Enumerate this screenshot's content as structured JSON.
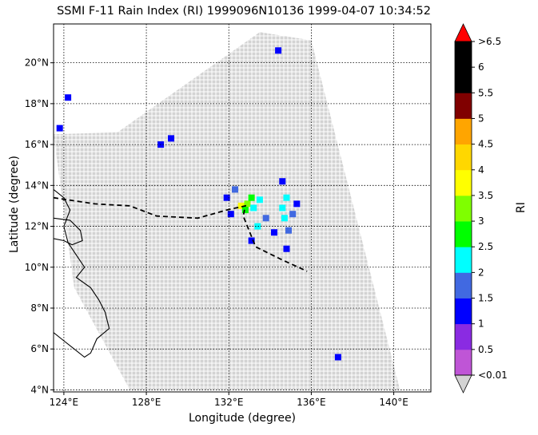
{
  "chart_data": {
    "type": "heatmap",
    "title": "SSMI F-11 Rain Index (RI) 1999096N10136 1999-04-07 10:34:52",
    "xlabel": "Longitude (degree)",
    "ylabel": "Latitude (degree)",
    "xlim": [
      123.5,
      141.8
    ],
    "ylim": [
      3.9,
      21.9
    ],
    "xticks": [
      {
        "value": 124,
        "label": "124°E"
      },
      {
        "value": 128,
        "label": "128°E"
      },
      {
        "value": 132,
        "label": "132°E"
      },
      {
        "value": 136,
        "label": "136°E"
      },
      {
        "value": 140,
        "label": "140°E"
      }
    ],
    "yticks": [
      {
        "value": 4,
        "label": "4°N"
      },
      {
        "value": 6,
        "label": "6°N"
      },
      {
        "value": 8,
        "label": "8°N"
      },
      {
        "value": 10,
        "label": "10°N"
      },
      {
        "value": 12,
        "label": "12°N"
      },
      {
        "value": 14,
        "label": "14°N"
      },
      {
        "value": 16,
        "label": "16°N"
      },
      {
        "value": 18,
        "label": "18°N"
      },
      {
        "value": 20,
        "label": "20°N"
      }
    ],
    "grid": true,
    "colorbar": {
      "label": "RI",
      "levels": [
        0.01,
        0.5,
        1,
        1.5,
        2,
        2.5,
        3,
        3.5,
        4,
        4.5,
        5,
        5.5,
        6,
        6.5
      ],
      "tick_labels": [
        "<0.01",
        "0.5",
        "1",
        "1.5",
        "2",
        "2.5",
        "3",
        "3.5",
        "4",
        "4.5",
        "5",
        "5.5",
        "6",
        ">6.5"
      ],
      "colors": [
        "#bf55d6",
        "#8a2be2",
        "#0000ff",
        "#4169e1",
        "#00ffff",
        "#00ff00",
        "#7fff00",
        "#ffff00",
        "#ffd700",
        "#ffa500",
        "#800000",
        "#000000",
        "#000000"
      ],
      "under_color": "#d3d3d3",
      "over_color": "#ff0000"
    },
    "swath": {
      "no_rain_color": "#d3d3d3",
      "corners_lonlat": [
        [
          126.6,
          16.6
        ],
        [
          133.5,
          21.5
        ],
        [
          136.0,
          21.1
        ],
        [
          140.3,
          4.0
        ],
        [
          127.2,
          4.0
        ],
        [
          124.5,
          9.0
        ],
        [
          123.5,
          16.5
        ]
      ]
    },
    "rain_cells": [
      {
        "lon": 132.6,
        "lat": 13.0,
        "ri": 3.5
      },
      {
        "lon": 132.9,
        "lat": 13.1,
        "ri": 3.2
      },
      {
        "lon": 133.1,
        "lat": 13.4,
        "ri": 2.8
      },
      {
        "lon": 132.8,
        "lat": 12.8,
        "ri": 2.7
      },
      {
        "lon": 133.2,
        "lat": 12.9,
        "ri": 2.4
      },
      {
        "lon": 133.5,
        "lat": 13.3,
        "ri": 2.2
      },
      {
        "lon": 134.6,
        "lat": 12.9,
        "ri": 2.2
      },
      {
        "lon": 134.8,
        "lat": 13.4,
        "ri": 2.3
      },
      {
        "lon": 134.7,
        "lat": 12.4,
        "ri": 2.1
      },
      {
        "lon": 135.1,
        "lat": 12.6,
        "ri": 1.8
      },
      {
        "lon": 133.4,
        "lat": 12.0,
        "ri": 2.0
      },
      {
        "lon": 132.3,
        "lat": 13.8,
        "ri": 1.6
      },
      {
        "lon": 131.9,
        "lat": 13.4,
        "ri": 1.4
      },
      {
        "lon": 132.1,
        "lat": 12.6,
        "ri": 1.3
      },
      {
        "lon": 133.8,
        "lat": 12.4,
        "ri": 1.5
      },
      {
        "lon": 134.2,
        "lat": 11.7,
        "ri": 1.4
      },
      {
        "lon": 134.9,
        "lat": 11.8,
        "ri": 1.6
      },
      {
        "lon": 134.6,
        "lat": 14.2,
        "ri": 1.3
      },
      {
        "lon": 135.3,
        "lat": 13.1,
        "ri": 1.4
      },
      {
        "lon": 134.8,
        "lat": 10.9,
        "ri": 1.2
      },
      {
        "lon": 133.1,
        "lat": 11.3,
        "ri": 1.3
      },
      {
        "lon": 134.4,
        "lat": 20.6,
        "ri": 1.4
      },
      {
        "lon": 129.2,
        "lat": 16.3,
        "ri": 1.3
      },
      {
        "lon": 128.7,
        "lat": 16.0,
        "ri": 1.2
      },
      {
        "lon": 123.8,
        "lat": 16.8,
        "ri": 1.2
      },
      {
        "lon": 124.2,
        "lat": 18.3,
        "ri": 1.0
      },
      {
        "lon": 137.3,
        "lat": 5.6,
        "ri": 1.0
      }
    ],
    "annotations": [
      {
        "type": "track",
        "style": "dashed",
        "points": [
          [
            123.5,
            13.4
          ],
          [
            125.5,
            13.1
          ],
          [
            127.2,
            13.0
          ],
          [
            128.5,
            12.5
          ],
          [
            130.5,
            12.4
          ],
          [
            131.9,
            12.8
          ],
          [
            132.8,
            13.0
          ],
          [
            132.7,
            12.5
          ],
          [
            133.3,
            11.0
          ],
          [
            134.5,
            10.4
          ],
          [
            135.8,
            9.8
          ]
        ]
      }
    ]
  }
}
